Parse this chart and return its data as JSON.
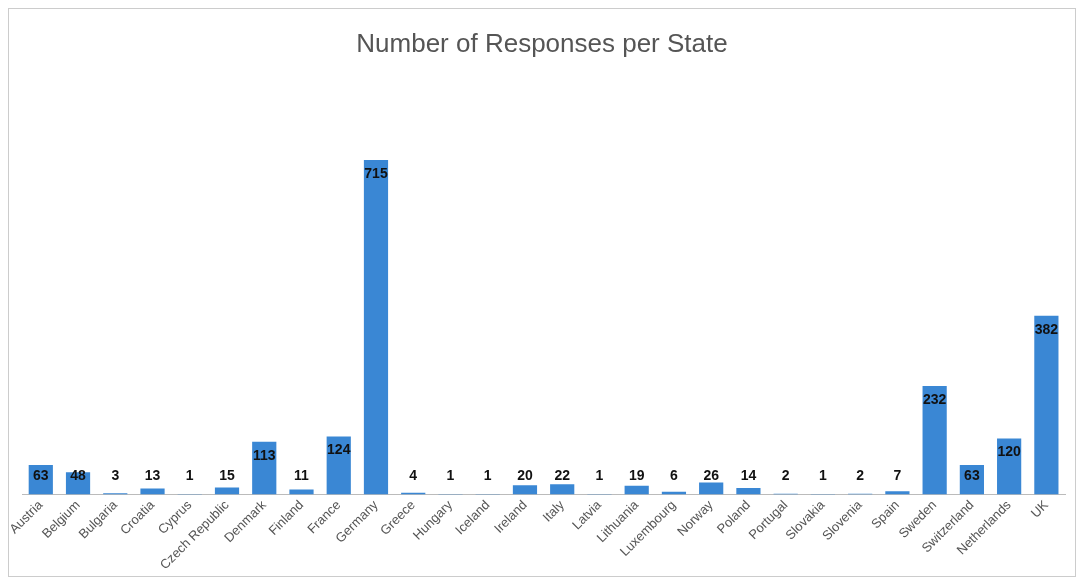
{
  "chart_data": {
    "type": "bar",
    "title": "Number of Responses per State",
    "categories": [
      "Austria",
      "Belgium",
      "Bulgaria",
      "Croatia",
      "Cyprus",
      "Czech Republic",
      "Denmark",
      "Finland",
      "France",
      "Germany",
      "Greece",
      "Hungary",
      "Iceland",
      "Ireland",
      "Italy",
      "Latvia",
      "Lithuania",
      "Luxembourg",
      "Norway",
      "Poland",
      "Portugal",
      "Slovakia",
      "Slovenia",
      "Spain",
      "Sweden",
      "Switzerland",
      "Netherlands",
      "UK"
    ],
    "values": [
      63,
      48,
      3,
      13,
      1,
      15,
      113,
      11,
      124,
      715,
      4,
      1,
      1,
      20,
      22,
      1,
      19,
      6,
      26,
      14,
      2,
      1,
      2,
      7,
      232,
      63,
      120,
      382
    ],
    "color": "#3a87d4",
    "data_labels": true,
    "grid": false,
    "legend": false
  }
}
